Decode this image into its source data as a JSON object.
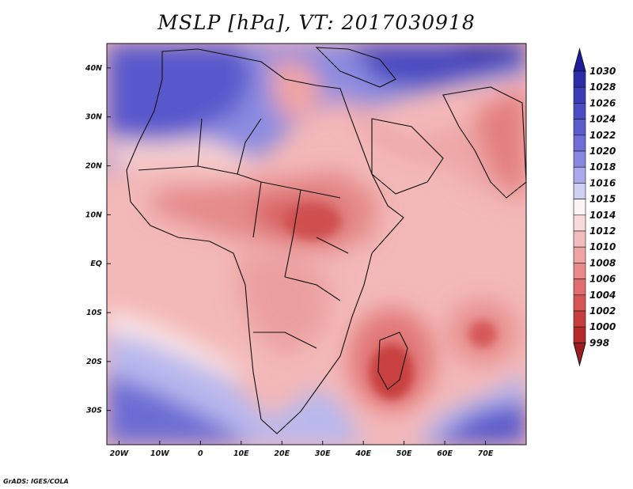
{
  "title": "MSLP [hPa], VT: 2017030918",
  "credit": "GrADS: IGES/COLA",
  "map": {
    "region": "Africa and Western Indian Ocean",
    "lon_range": [
      -23,
      80
    ],
    "lat_range": [
      -37,
      45
    ],
    "x_ticks": [
      "20W",
      "10W",
      "0",
      "10E",
      "20E",
      "30E",
      "40E",
      "50E",
      "60E",
      "70E"
    ],
    "x_tick_values": [
      -20,
      -10,
      0,
      10,
      20,
      30,
      40,
      50,
      60,
      70
    ],
    "y_ticks": [
      "40N",
      "30N",
      "20N",
      "10N",
      "EQ",
      "10S",
      "20S",
      "30S"
    ],
    "y_tick_values": [
      40,
      30,
      20,
      10,
      0,
      -10,
      -20,
      -30
    ]
  },
  "colorbar": {
    "labels": [
      "1030",
      "1028",
      "1026",
      "1024",
      "1022",
      "1020",
      "1018",
      "1016",
      "1015",
      "1014",
      "1012",
      "1010",
      "1008",
      "1006",
      "1004",
      "1002",
      "1000",
      "998"
    ],
    "colors": [
      "#1e1e9c",
      "#2d2da8",
      "#3c3cb6",
      "#4b4bc3",
      "#5b5bcc",
      "#6e6ed6",
      "#8888e0",
      "#a9a9eb",
      "#d0d0f5",
      "#fdf4f4",
      "#f9dada",
      "#f4bdbd",
      "#efa4a4",
      "#e88a8a",
      "#e06e6e",
      "#d55454",
      "#c83e3e",
      "#b52a2a",
      "#9c1e1e"
    ]
  },
  "pressure_systems": [
    {
      "name": "madagascar-low",
      "lon": 47,
      "lat": -23,
      "hpa": 1000
    },
    {
      "name": "indian-ocean-low",
      "lon": 68,
      "lat": -15,
      "hpa": 1004
    },
    {
      "name": "central-africa-low",
      "lon": 28,
      "lat": 8,
      "hpa": 1006
    },
    {
      "name": "arabia-india-low",
      "lon": 68,
      "lat": 27,
      "hpa": 1008
    },
    {
      "name": "azores-high",
      "lon": -15,
      "lat": 35,
      "hpa": 1026
    },
    {
      "name": "eurasia-high",
      "lon": 60,
      "lat": 45,
      "hpa": 1030
    },
    {
      "name": "south-atlantic-high",
      "lon": -20,
      "lat": -33,
      "hpa": 1022
    },
    {
      "name": "south-indian-high",
      "lon": 75,
      "lat": -35,
      "hpa": 1024
    }
  ]
}
